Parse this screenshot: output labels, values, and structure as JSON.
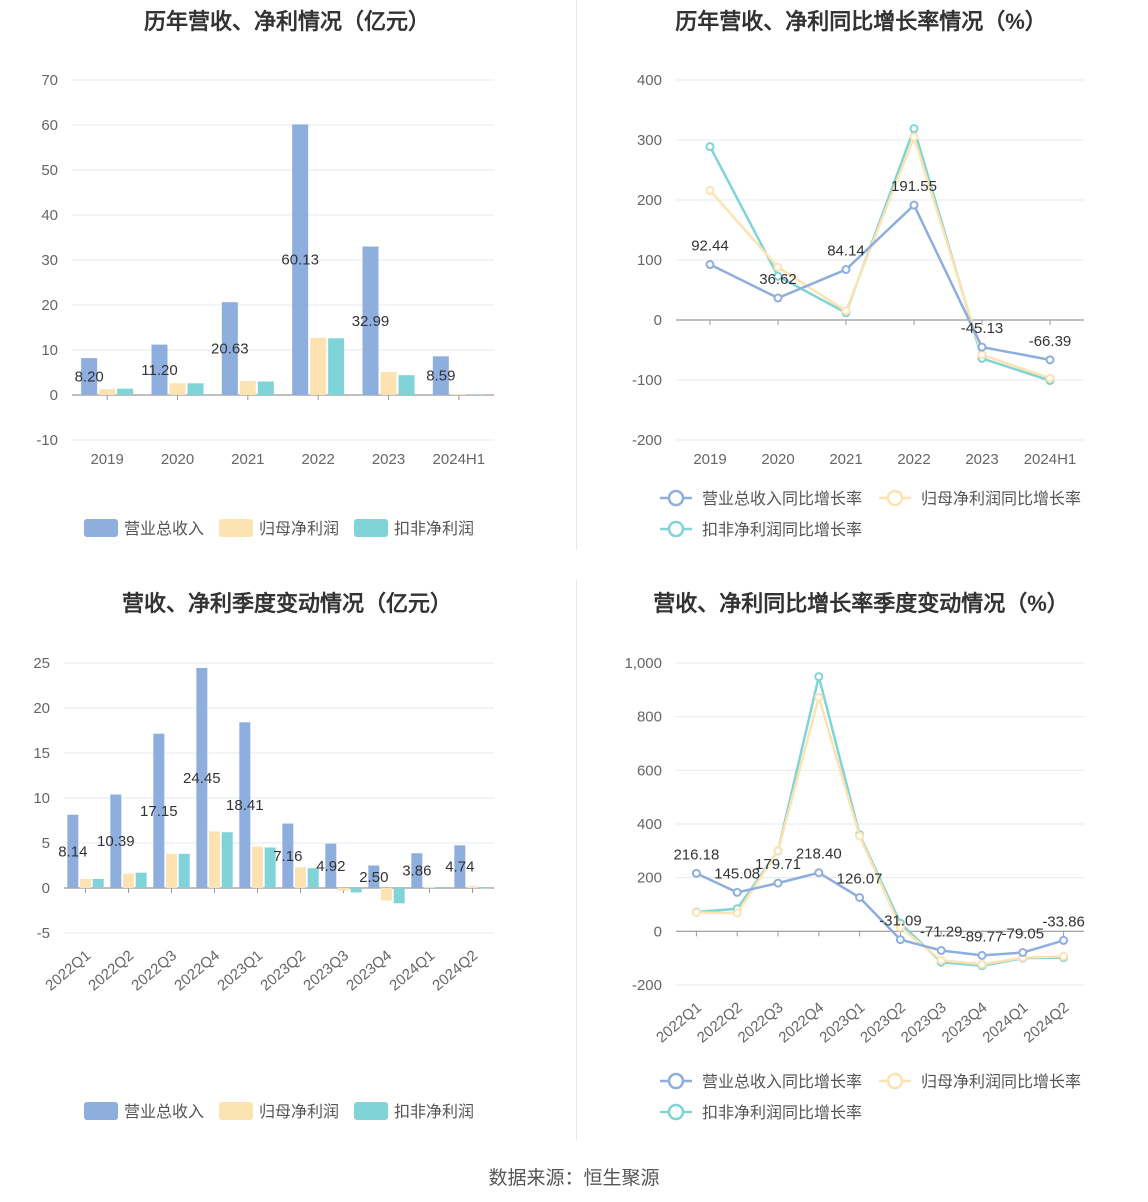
{
  "charts": [
    {
      "id": "annual-amounts",
      "title": "历年营收、净利情况（亿元）",
      "chart_data": {
        "type": "bar",
        "categories": [
          "2019",
          "2020",
          "2021",
          "2022",
          "2023",
          "2024H1"
        ],
        "series": [
          {
            "name": "营业总收入",
            "values": [
              8.2,
              11.2,
              20.63,
              60.13,
              32.99,
              8.59
            ],
            "color": "#8eaede"
          },
          {
            "name": "归母净利润",
            "values": [
              1.3,
              2.6,
              3.1,
              12.7,
              5.1,
              0.2
            ],
            "color": "#fde3b2"
          },
          {
            "name": "扣非净利润",
            "values": [
              1.4,
              2.6,
              3.0,
              12.6,
              4.4,
              0.1
            ],
            "color": "#80d3d6"
          }
        ],
        "data_labels": [
          "8.20",
          "11.20",
          "20.63",
          "60.13",
          "32.99",
          "8.59"
        ],
        "ylim": [
          -10,
          70
        ],
        "yticks": [
          "-10",
          "0",
          "10",
          "20",
          "30",
          "40",
          "50",
          "60",
          "70"
        ],
        "legend": "bottom"
      }
    },
    {
      "id": "annual-growth",
      "title": "历年营收、净利同比增长率情况（%）",
      "chart_data": {
        "type": "line",
        "categories": [
          "2019",
          "2020",
          "2021",
          "2022",
          "2023",
          "2024H1"
        ],
        "series": [
          {
            "name": "营业总收入同比增长率",
            "values": [
              92.44,
              36.62,
              84.14,
              191.55,
              -45.13,
              -66.39
            ],
            "color": "#8eaede"
          },
          {
            "name": "归母净利润同比增长率",
            "values": [
              216,
              88,
              15,
              305,
              -58,
              -97
            ],
            "color": "#fde3b2"
          },
          {
            "name": "扣非净利润同比增长率",
            "values": [
              289,
              73,
              12,
              319,
              -64,
              -101
            ],
            "color": "#80d3d6"
          }
        ],
        "data_labels": [
          "92.44",
          "36.62",
          "84.14",
          "191.55",
          "-45.13",
          "-66.39"
        ],
        "ylim": [
          -200,
          400
        ],
        "yticks": [
          "-200",
          "-100",
          "0",
          "100",
          "200",
          "300",
          "400"
        ],
        "legend": "bottom"
      }
    },
    {
      "id": "quarterly-amounts",
      "title": "营收、净利季度变动情况（亿元）",
      "chart_data": {
        "type": "bar",
        "categories": [
          "2022Q1",
          "2022Q2",
          "2022Q3",
          "2022Q4",
          "2023Q1",
          "2023Q2",
          "2023Q3",
          "2023Q4",
          "2024Q1",
          "2024Q2"
        ],
        "series": [
          {
            "name": "营业总收入",
            "values": [
              8.14,
              10.39,
              17.15,
              24.45,
              18.41,
              7.16,
              4.92,
              2.5,
              3.86,
              4.74
            ],
            "color": "#8eaede"
          },
          {
            "name": "归母净利润",
            "values": [
              1.0,
              1.6,
              3.8,
              6.3,
              4.6,
              2.3,
              -0.3,
              -1.4,
              0.1,
              0.2
            ],
            "color": "#fde3b2"
          },
          {
            "name": "扣非净利润",
            "values": [
              1.0,
              1.7,
              3.8,
              6.2,
              4.5,
              2.2,
              -0.5,
              -1.7,
              0.1,
              0.0
            ],
            "color": "#80d3d6"
          }
        ],
        "data_labels": [
          "8.14",
          "10.39",
          "17.15",
          "24.45",
          "18.41",
          "7.16",
          "4.92",
          "2.50",
          "3.86",
          "4.74"
        ],
        "ylim": [
          -5,
          25
        ],
        "yticks": [
          "-5",
          "0",
          "5",
          "10",
          "15",
          "20",
          "25"
        ],
        "legend": "bottom"
      }
    },
    {
      "id": "quarterly-growth",
      "title": "营收、净利同比增长率季度变动情况（%）",
      "chart_data": {
        "type": "line",
        "categories": [
          "2022Q1",
          "2022Q2",
          "2022Q3",
          "2022Q4",
          "2023Q1",
          "2023Q2",
          "2023Q3",
          "2023Q4",
          "2024Q1",
          "2024Q2"
        ],
        "series": [
          {
            "name": "营业总收入同比增长率",
            "values": [
              216.18,
              145.08,
              179.71,
              218.4,
              126.07,
              -31.09,
              -71.29,
              -89.77,
              -79.05,
              -33.86
            ],
            "color": "#8eaede"
          },
          {
            "name": "归母净利润同比增长率",
            "values": [
              70,
              68,
              300,
              872,
              355,
              15,
              -108,
              -123,
              -98,
              -93
            ],
            "color": "#fde3b2"
          },
          {
            "name": "扣非净利润同比增长率",
            "values": [
              72,
              84,
              300,
              949,
              360,
              30,
              -115,
              -128,
              -100,
              -98
            ],
            "color": "#80d3d6"
          }
        ],
        "data_labels": [
          "216.18",
          "145.08",
          "179.71",
          "218.40",
          "126.07",
          "-31.09",
          "-71.29",
          "-89.77",
          "-79.05",
          "-33.86"
        ],
        "ylim": [
          -200,
          1000
        ],
        "yticks": [
          "-200",
          "0",
          "200",
          "400",
          "600",
          "800",
          "1,000"
        ],
        "legend": "bottom"
      }
    }
  ],
  "footer": {
    "source": "数据来源：恒生聚源"
  }
}
